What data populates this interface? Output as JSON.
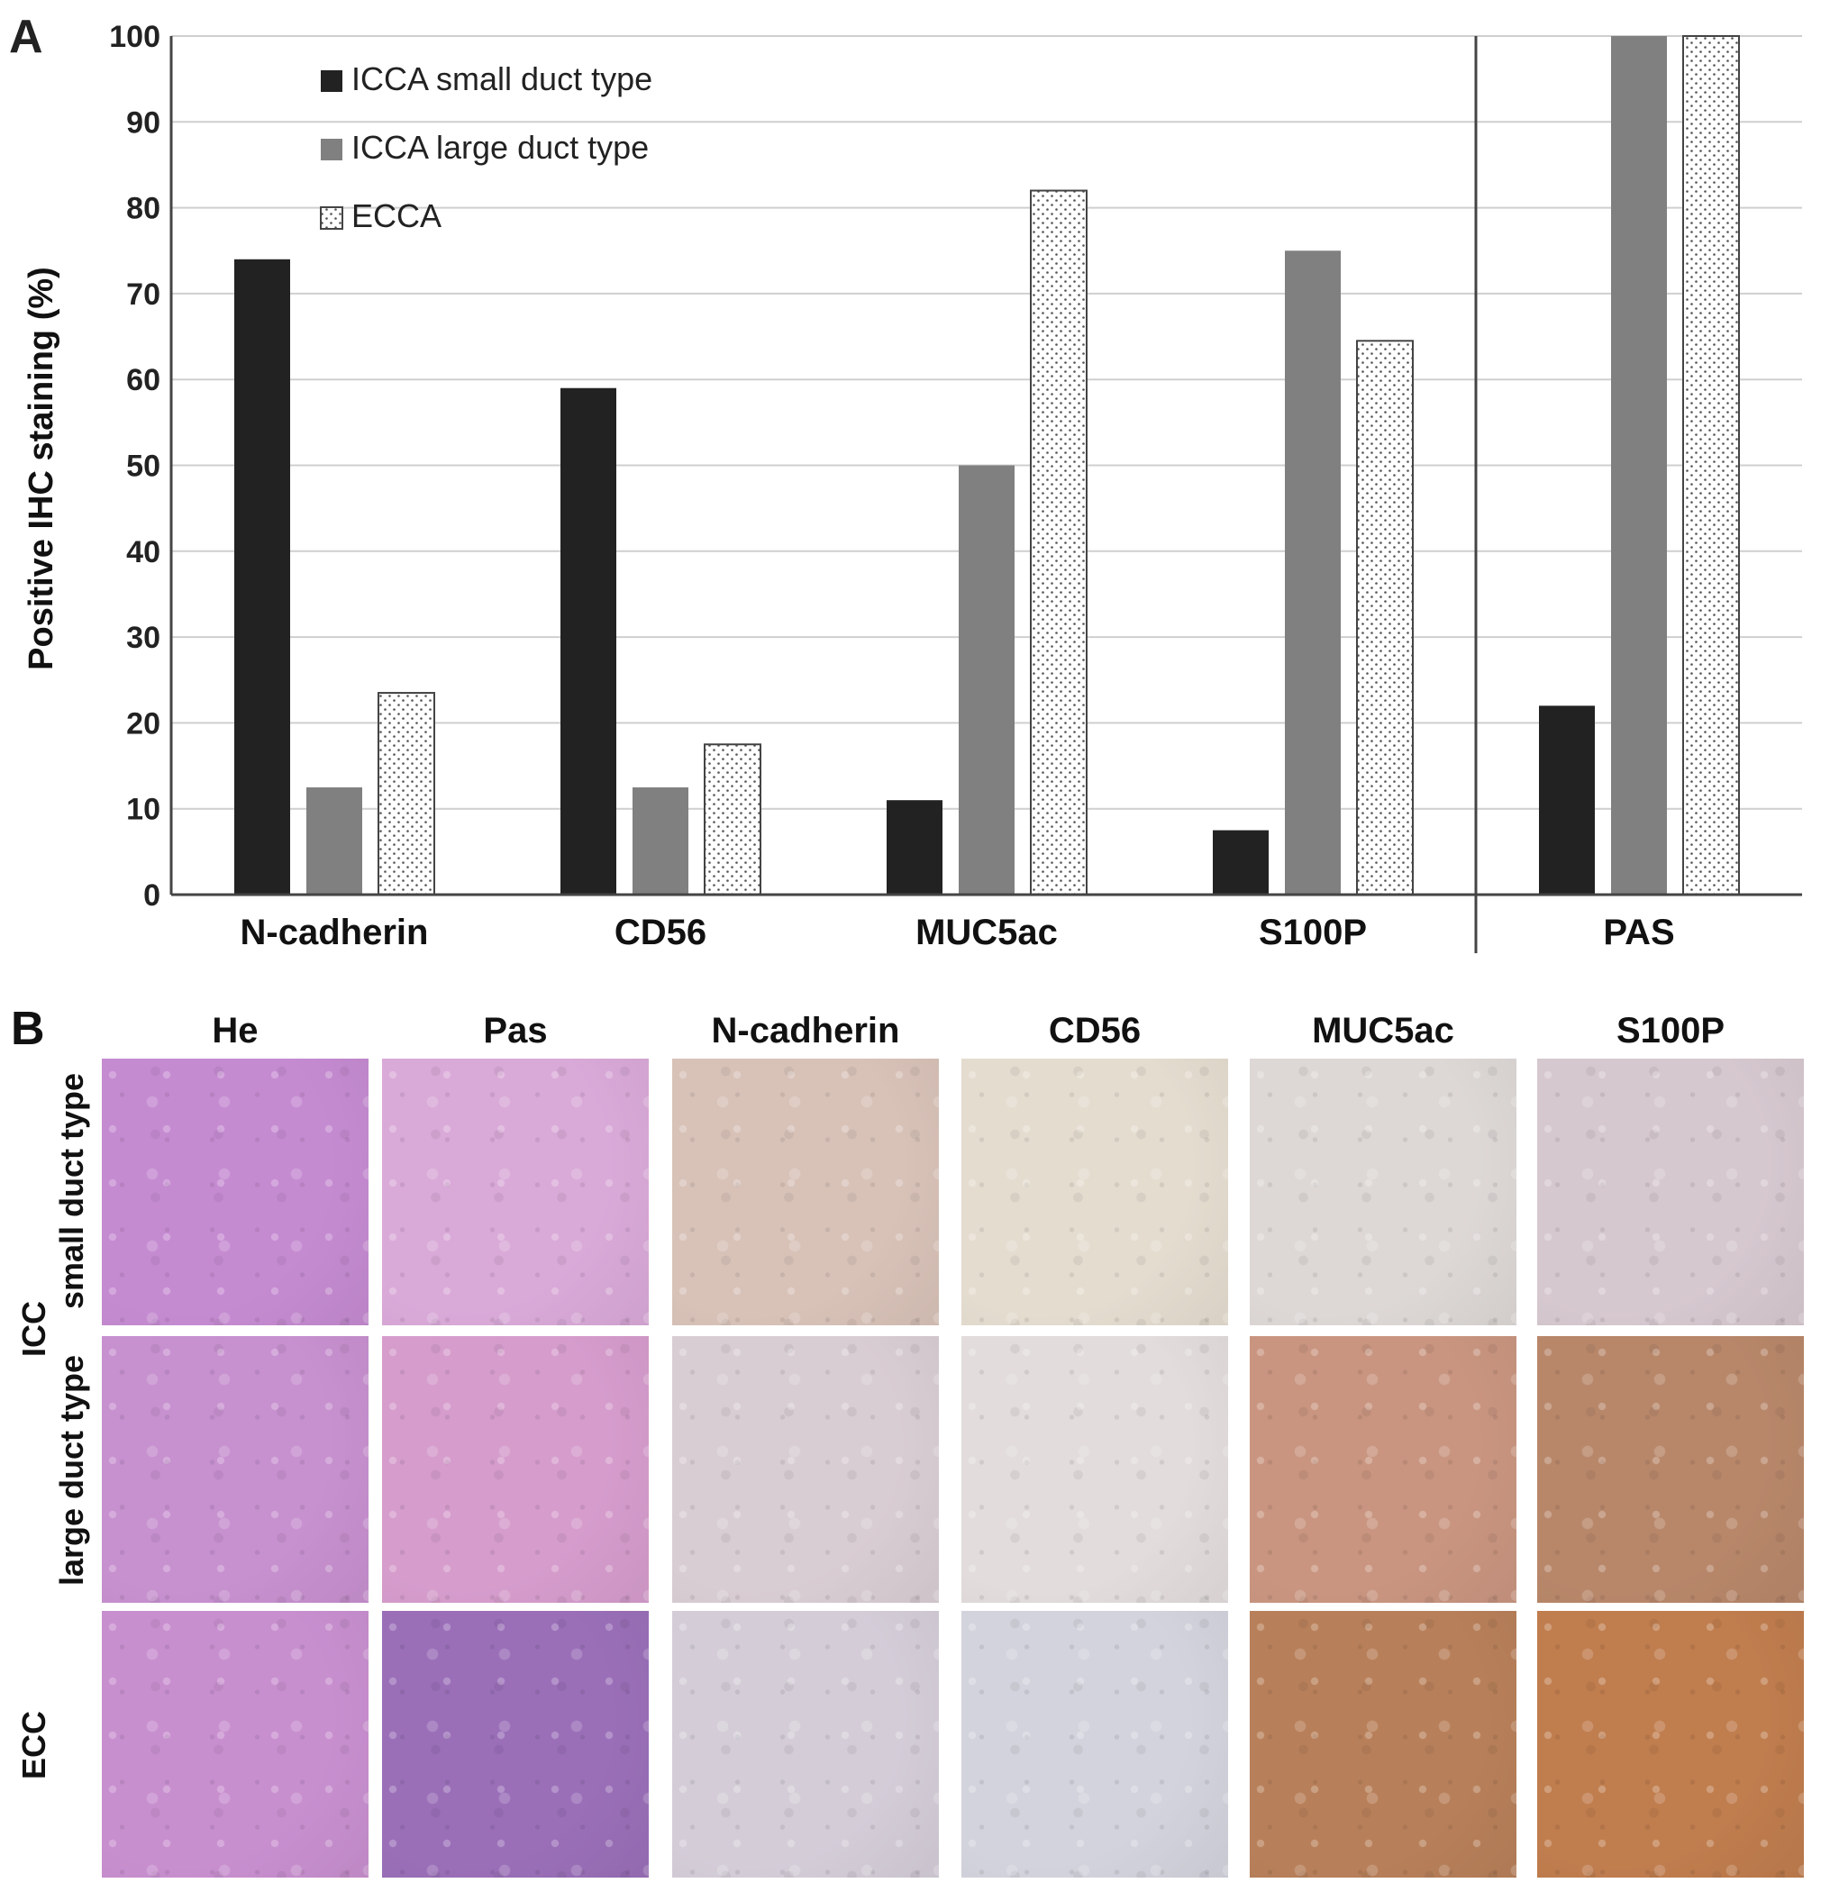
{
  "panel_a_letter": "A",
  "panel_b_letter": "B",
  "chart_data": {
    "type": "bar",
    "ylabel": "Positive IHC staining (%)",
    "xlabel": "",
    "ylim": [
      0,
      100
    ],
    "yticks": [
      0,
      10,
      20,
      30,
      40,
      50,
      60,
      70,
      80,
      90,
      100
    ],
    "grid": true,
    "legend_position": "top-left",
    "categories": [
      "N-cadherin",
      "CD56",
      "MUC5ac",
      "S100P",
      "PAS"
    ],
    "series": [
      {
        "name": "ICCA small duct type",
        "color": "#222222",
        "values": [
          74,
          59,
          11,
          7.5,
          22
        ]
      },
      {
        "name": "ICCA large duct type",
        "color": "#808080",
        "values": [
          12.5,
          12.5,
          50,
          75,
          100
        ]
      },
      {
        "name": "ECCA",
        "color": "dotted",
        "values": [
          23.5,
          17.5,
          82,
          64.5,
          100
        ]
      }
    ],
    "separator_before_category": 4
  },
  "panel_b": {
    "columns": [
      "He",
      "Pas",
      "N-cadherin",
      "CD56",
      "MUC5ac",
      "S100P"
    ],
    "group_label": "ICC",
    "rows": [
      "small duct type",
      "large duct type",
      "ECC"
    ],
    "tile_colors": [
      [
        "#c58bd1",
        "#d9a9d8",
        "#d8c2b8",
        "#e4dccf",
        "#ddd8d6",
        "#d6c8cf"
      ],
      [
        "#c790cf",
        "#d59ccc",
        "#d8cdd3",
        "#e2dcdc",
        "#c99580",
        "#b8876a"
      ],
      [
        "#c88fcf",
        "#9a6fb8",
        "#d4cdd8",
        "#d3d3dd",
        "#b8805a",
        "#c07d4e"
      ]
    ]
  }
}
